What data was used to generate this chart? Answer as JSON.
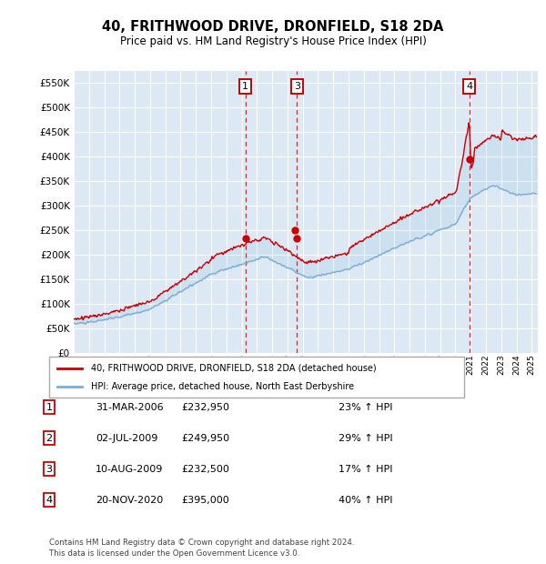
{
  "title": "40, FRITHWOOD DRIVE, DRONFIELD, S18 2DA",
  "subtitle": "Price paid vs. HM Land Registry's House Price Index (HPI)",
  "legend_line1": "40, FRITHWOOD DRIVE, DRONFIELD, S18 2DA (detached house)",
  "legend_line2": "HPI: Average price, detached house, North East Derbyshire",
  "footer1": "Contains HM Land Registry data © Crown copyright and database right 2024.",
  "footer2": "This data is licensed under the Open Government Licence v3.0.",
  "ylim": [
    0,
    575000
  ],
  "yticks": [
    0,
    50000,
    100000,
    150000,
    200000,
    250000,
    300000,
    350000,
    400000,
    450000,
    500000,
    550000
  ],
  "plot_bg": "#dce9f5",
  "grid_color": "#ffffff",
  "red_line_color": "#cc0000",
  "blue_line_color": "#7aaed6",
  "vline_dates": [
    2006.25,
    2009.62,
    2020.9
  ],
  "vline_labels": [
    "1",
    "3",
    "4"
  ],
  "sale_markers": [
    {
      "date_num": 2006.25,
      "price": 232950,
      "label": "1",
      "show_dot": true
    },
    {
      "date_num": 2009.5,
      "price": 249950,
      "label": "2",
      "show_dot": true
    },
    {
      "date_num": 2009.62,
      "price": 232500,
      "label": "3",
      "show_dot": true
    },
    {
      "date_num": 2020.9,
      "price": 395000,
      "label": "4",
      "show_dot": true
    }
  ],
  "table_data": [
    [
      "1",
      "31-MAR-2006",
      "£232,950",
      "23% ↑ HPI"
    ],
    [
      "2",
      "02-JUL-2009",
      "£249,950",
      "29% ↑ HPI"
    ],
    [
      "3",
      "10-AUG-2009",
      "£232,500",
      "17% ↑ HPI"
    ],
    [
      "4",
      "20-NOV-2020",
      "£395,000",
      "40% ↑ HPI"
    ]
  ]
}
